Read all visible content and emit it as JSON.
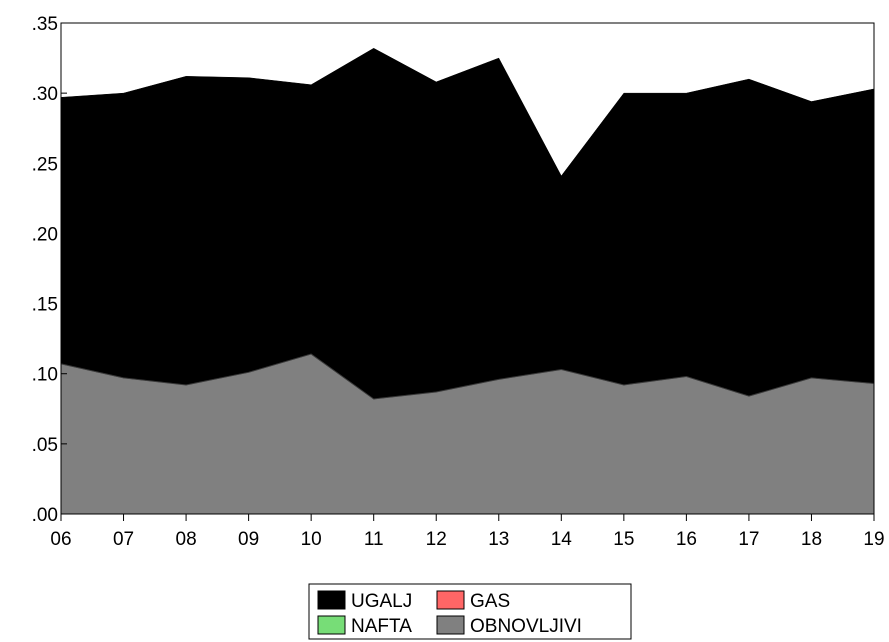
{
  "chart_data": {
    "type": "area",
    "stacked": true,
    "title": "",
    "xlabel": "",
    "ylabel": "",
    "x": [
      "06",
      "07",
      "08",
      "09",
      "10",
      "11",
      "12",
      "13",
      "14",
      "15",
      "16",
      "17",
      "18",
      "19"
    ],
    "ylim": [
      0,
      0.35
    ],
    "yticks": [
      0,
      0.05,
      0.1,
      0.15,
      0.2,
      0.25,
      0.3,
      0.35
    ],
    "ytick_labels": [
      ".00",
      ".05",
      ".10",
      ".15",
      ".20",
      ".25",
      ".30",
      ".35"
    ],
    "grid": false,
    "legend_position": "bottom-center",
    "series": [
      {
        "name": "OBNOVLJIVI",
        "color": "#808080",
        "values": [
          0.107,
          0.097,
          0.092,
          0.101,
          0.114,
          0.082,
          0.087,
          0.096,
          0.103,
          0.092,
          0.098,
          0.084,
          0.097,
          0.093
        ]
      },
      {
        "name": "GAS",
        "color": "#ff6666",
        "values": [
          0,
          0,
          0,
          0,
          0,
          0,
          0,
          0,
          0,
          0,
          0,
          0,
          0,
          0
        ]
      },
      {
        "name": "NAFTA",
        "color": "#77dd77",
        "values": [
          0,
          0,
          0,
          0,
          0,
          0,
          0,
          0,
          0,
          0,
          0,
          0,
          0,
          0
        ]
      },
      {
        "name": "UGALJ",
        "color": "#000000",
        "values": [
          0.19,
          0.203,
          0.22,
          0.21,
          0.192,
          0.25,
          0.221,
          0.229,
          0.138,
          0.208,
          0.202,
          0.226,
          0.197,
          0.21
        ]
      }
    ],
    "legend": [
      {
        "name": "UGALJ",
        "color": "#000000"
      },
      {
        "name": "GAS",
        "color": "#ff6666"
      },
      {
        "name": "NAFTA",
        "color": "#77dd77"
      },
      {
        "name": "OBNOVLJIVI",
        "color": "#808080"
      }
    ]
  }
}
